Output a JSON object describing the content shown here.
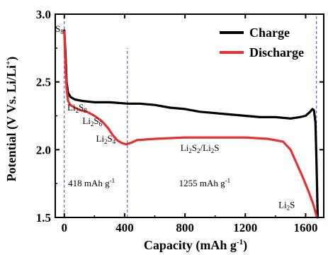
{
  "chart_data": {
    "type": "line",
    "xlabel": "Capacity (mAh g",
    "xlabel_sup": "-1",
    "xlabel_tail": ")",
    "ylabel": "Potential (V Vs. Li/Li",
    "ylabel_sup": "+",
    "ylabel_tail": ")",
    "xlim": [
      -60,
      1720
    ],
    "ylim": [
      1.5,
      3.0
    ],
    "xticks": [
      {
        "value": 0,
        "label": "0"
      },
      {
        "value": 400,
        "label": "400"
      },
      {
        "value": 800,
        "label": "800"
      },
      {
        "value": 1200,
        "label": "1200"
      },
      {
        "value": 1600,
        "label": "1600"
      }
    ],
    "yticks": [
      {
        "value": 1.5,
        "label": "1.5"
      },
      {
        "value": 2.0,
        "label": "2.0"
      },
      {
        "value": 2.5,
        "label": "2.5"
      },
      {
        "value": 3.0,
        "label": "3.0"
      }
    ],
    "grid": false,
    "legend_position": "top-right",
    "series": [
      {
        "name": "Charge",
        "color": "#000000",
        "points": [
          [
            0,
            2.88
          ],
          [
            8,
            2.7
          ],
          [
            15,
            2.5
          ],
          [
            25,
            2.42
          ],
          [
            40,
            2.39
          ],
          [
            70,
            2.37
          ],
          [
            120,
            2.36
          ],
          [
            200,
            2.35
          ],
          [
            300,
            2.35
          ],
          [
            420,
            2.34
          ],
          [
            500,
            2.34
          ],
          [
            600,
            2.33
          ],
          [
            700,
            2.31
          ],
          [
            800,
            2.3
          ],
          [
            900,
            2.28
          ],
          [
            1000,
            2.27
          ],
          [
            1100,
            2.26
          ],
          [
            1200,
            2.25
          ],
          [
            1300,
            2.24
          ],
          [
            1400,
            2.24
          ],
          [
            1500,
            2.23
          ],
          [
            1560,
            2.24
          ],
          [
            1600,
            2.25
          ],
          [
            1630,
            2.28
          ],
          [
            1645,
            2.3
          ],
          [
            1655,
            2.29
          ],
          [
            1665,
            2.2
          ],
          [
            1672,
            1.9
          ],
          [
            1680,
            1.5
          ]
        ]
      },
      {
        "name": "Discharge",
        "color": "#e8312f",
        "points": [
          [
            0,
            2.87
          ],
          [
            8,
            2.6
          ],
          [
            15,
            2.45
          ],
          [
            25,
            2.36
          ],
          [
            40,
            2.33
          ],
          [
            70,
            2.31
          ],
          [
            110,
            2.29
          ],
          [
            150,
            2.28
          ],
          [
            200,
            2.25
          ],
          [
            250,
            2.21
          ],
          [
            290,
            2.16
          ],
          [
            320,
            2.11
          ],
          [
            350,
            2.07
          ],
          [
            380,
            2.05
          ],
          [
            410,
            2.04
          ],
          [
            440,
            2.05
          ],
          [
            480,
            2.07
          ],
          [
            600,
            2.08
          ],
          [
            800,
            2.09
          ],
          [
            1000,
            2.09
          ],
          [
            1200,
            2.09
          ],
          [
            1350,
            2.08
          ],
          [
            1450,
            2.06
          ],
          [
            1500,
            2.0
          ],
          [
            1540,
            1.9
          ],
          [
            1580,
            1.8
          ],
          [
            1620,
            1.69
          ],
          [
            1650,
            1.6
          ],
          [
            1675,
            1.5
          ]
        ]
      }
    ],
    "vlines": [
      {
        "x": 0,
        "ymin": 1.5,
        "ymax": 3.0,
        "color": "#4444aa"
      },
      {
        "x": 418,
        "ymin": 1.5,
        "ymax": 2.75,
        "color": "#4444aa"
      },
      {
        "x": 1672,
        "ymin": 1.5,
        "ymax": 3.0,
        "color": "#4444aa"
      }
    ],
    "annotations": [
      {
        "id": "s8",
        "main": "S",
        "sub": "8",
        "tail": "",
        "x": -60,
        "y": 2.87
      },
      {
        "id": "li2s8",
        "main": "Li",
        "sub": "2",
        "mid": "S",
        "sub2": "8",
        "x": 20,
        "y": 2.29
      },
      {
        "id": "li2s6",
        "main": "Li",
        "sub": "2",
        "mid": "S",
        "sub2": "6",
        "x": 120,
        "y": 2.19
      },
      {
        "id": "li2s4",
        "main": "Li",
        "sub": "2",
        "mid": "S",
        "sub2": "4",
        "x": 210,
        "y": 2.06
      },
      {
        "id": "li2s2li2s",
        "main": "Li",
        "sub": "2",
        "mid": "S",
        "sub2": "2",
        "tail": "/Li",
        "sub3": "2",
        "tail2": "S",
        "x": 770,
        "y": 1.99
      },
      {
        "id": "li2s",
        "main": "Li",
        "sub": "2",
        "mid": "S",
        "x": 1420,
        "y": 1.57
      },
      {
        "id": "cap1",
        "main": "418 mAh g",
        "sup": "-1",
        "x": 25,
        "y": 1.73
      },
      {
        "id": "cap2",
        "main": "1255 mAh g",
        "sup": "-1",
        "x": 760,
        "y": 1.73
      }
    ]
  }
}
